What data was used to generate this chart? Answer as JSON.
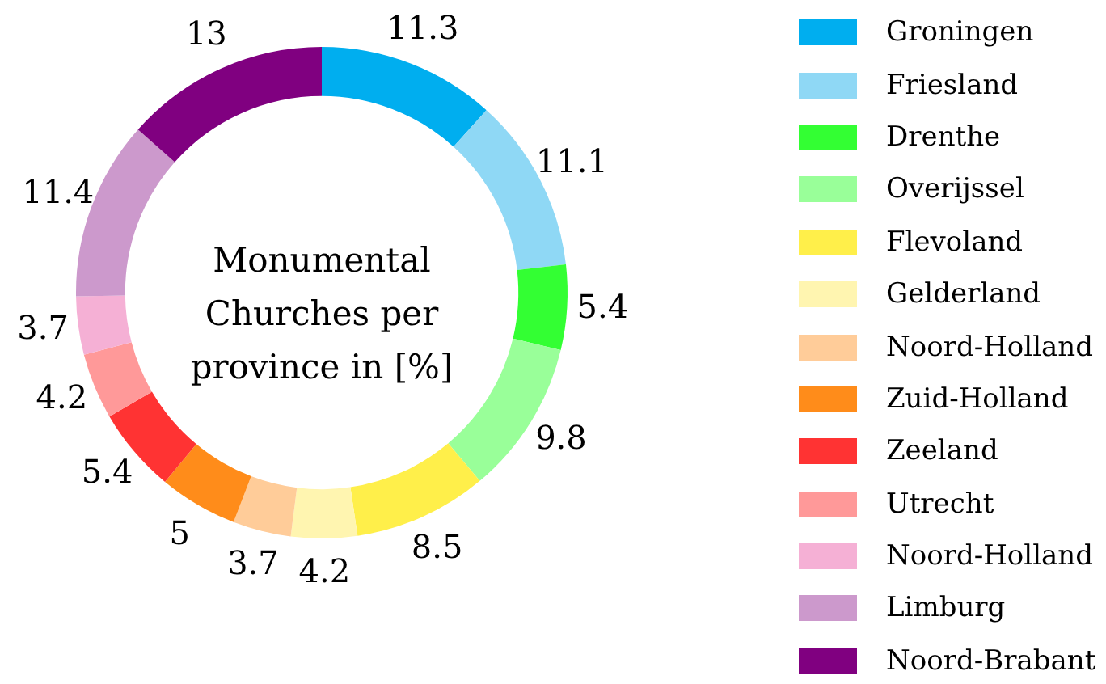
{
  "chart_data": {
    "type": "donut",
    "title": "Monumental Churches per province in [%]",
    "categories": [
      "Groningen",
      "Friesland",
      "Drenthe",
      "Overijssel",
      "Flevoland",
      "Gelderland",
      "Noord-Holland",
      "Zuid-Holland",
      "Zeeland",
      "Utrecht",
      "Noord-Holland",
      "Limburg",
      "Noord-Brabant"
    ],
    "values": [
      11.3,
      11.1,
      5.4,
      9.8,
      8.5,
      4.2,
      3.7,
      5,
      5.4,
      4.2,
      3.7,
      11.4,
      13
    ],
    "colors": [
      "#00aeef",
      "#8fd8f5",
      "#33ff33",
      "#99ff99",
      "#ffef4a",
      "#fff5b0",
      "#ffcc99",
      "#ff8c1a",
      "#ff3333",
      "#ff9999",
      "#f5b0d5",
      "#cc99cc",
      "#800080"
    ],
    "data_labels": true,
    "legend": "right"
  }
}
